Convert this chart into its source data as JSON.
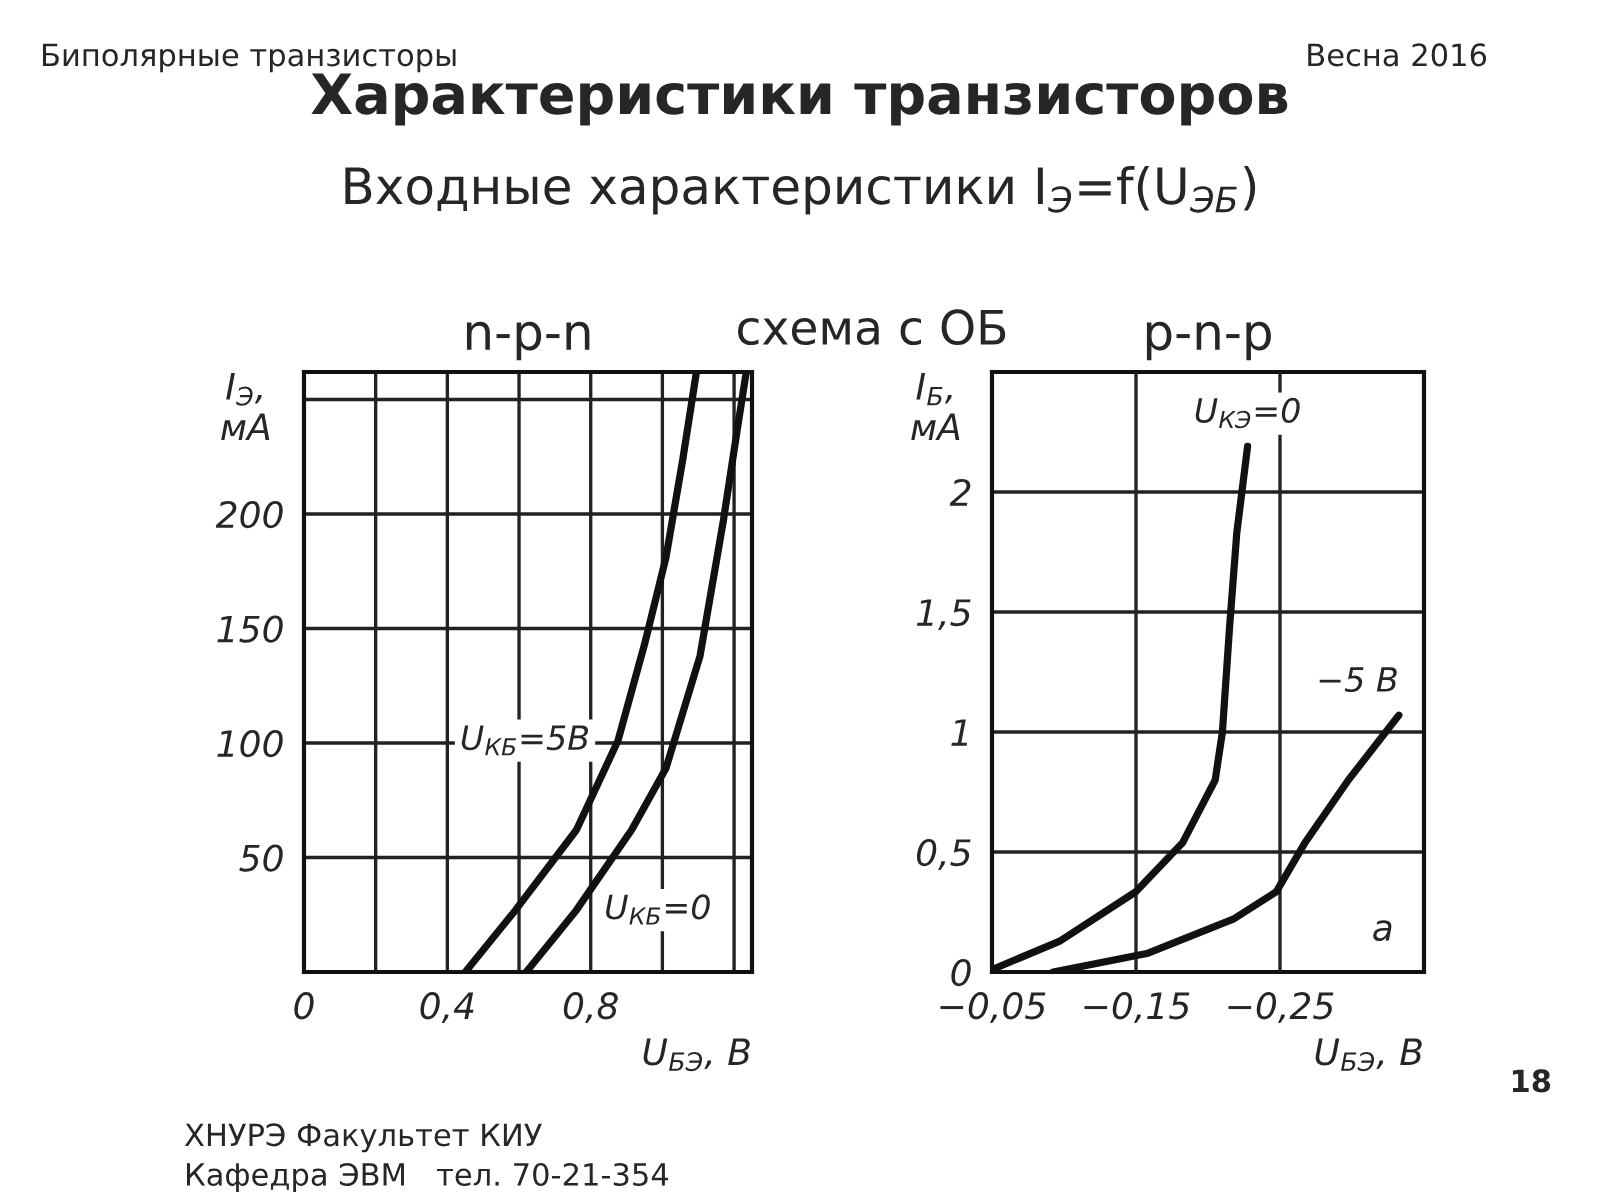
{
  "chart_data": [
    {
      "type": "other",
      "title": "Характеристики транзисторов",
      "subtitle": "Входные характеристики I$_{Э}$=f(U$_{ЭБ}$)",
      "annotations": [
        "Биполярные транзисторы",
        "Весна 2016",
        "схема с ОБ",
        "ХНУРЭ Факультет КИУ",
        "Кафедра ЭВМ   тел. 70-21-354",
        "18"
      ]
    },
    {
      "type": "line",
      "title": "n-p-n",
      "xlabel": "U$_{БЭ}$, В",
      "ylabel": "I$_{Э}$,\nмА",
      "xlim": [
        0,
        1.25
      ],
      "ylim": [
        0,
        262
      ],
      "xticks": [
        0,
        {
          "value": 0.2,
          "label": null
        },
        {
          "value": 0.4,
          "label": "0,4"
        },
        {
          "value": 0.6,
          "label": null
        },
        {
          "value": 0.8,
          "label": "0,8"
        },
        {
          "value": 1.0,
          "label": null
        },
        {
          "value": 1.2,
          "label": null
        }
      ],
      "yticks": [
        50,
        100,
        150,
        200,
        {
          "value": 250,
          "label": null
        }
      ],
      "grid": true,
      "marker": "none",
      "line_style": "solid",
      "series": [
        {
          "name": "U$_{КБ}$=5В",
          "color": "#111111",
          "x": [
            0.45,
            0.59,
            0.76,
            0.876,
            0.95,
            1.01,
            1.057,
            1.095
          ],
          "values": [
            0,
            27,
            62,
            101,
            143,
            181,
            224,
            262
          ]
        },
        {
          "name": "U$_{КБ}$=0",
          "color": "#111111",
          "x": [
            0.62,
            0.76,
            0.914,
            1.01,
            1.105,
            1.17,
            1.21,
            1.234
          ],
          "values": [
            0,
            27,
            62,
            89,
            138,
            197,
            238,
            262
          ]
        }
      ]
    },
    {
      "type": "line",
      "title": "p-n-p",
      "xlabel": "U$_{БЭ}$, В",
      "ylabel": "I$_{Б}$,\nмА",
      "xlim": [
        -0.05,
        -0.35
      ],
      "ylim": [
        0,
        2.5
      ],
      "xticks": [
        {
          "value": -0.05,
          "label": "−0,05"
        },
        {
          "value": -0.15,
          "label": "−0,15"
        },
        {
          "value": -0.25,
          "label": "−0,25"
        }
      ],
      "yticks": [
        0,
        {
          "value": 0.5,
          "label": "0,5"
        },
        1,
        {
          "value": 1.5,
          "label": "1,5"
        },
        2
      ],
      "grid": true,
      "marker": "none",
      "line_style": "solid",
      "annotations": [
        "а"
      ],
      "series": [
        {
          "name": "U$_{КЭ}$=0",
          "color": "#111111",
          "x": [
            -0.05,
            -0.0975,
            -0.15,
            -0.1825,
            -0.205,
            -0.21,
            -0.215,
            -0.22,
            -0.2275
          ],
          "values": [
            0.01,
            0.13,
            0.335,
            0.54,
            0.8,
            1.0,
            1.44,
            1.83,
            2.19
          ]
        },
        {
          "name": "−5 В",
          "color": "#111111",
          "x": [
            -0.0925,
            -0.1575,
            -0.2175,
            -0.2475,
            -0.2675,
            -0.2975,
            -0.3325
          ],
          "values": [
            0,
            0.077,
            0.22,
            0.335,
            0.54,
            0.8,
            1.07
          ]
        }
      ]
    }
  ]
}
